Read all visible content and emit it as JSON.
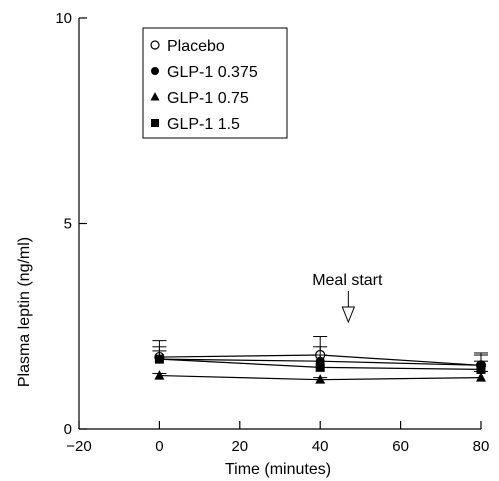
{
  "chart_data": {
    "type": "line",
    "xlabel": "Time (minutes)",
    "ylabel": "Plasma leptin (ng/ml)",
    "xlim": [
      -20,
      80
    ],
    "ylim": [
      0,
      10
    ],
    "x_ticks": [
      -20,
      0,
      20,
      40,
      60,
      80
    ],
    "y_ticks": [
      0,
      5,
      10
    ],
    "x_tick_labels": [
      "−20",
      "0",
      "20",
      "40",
      "60",
      "80"
    ],
    "y_tick_labels": [
      "0",
      "5",
      "10"
    ],
    "grid": false,
    "legend_position": "top-left",
    "annotation": {
      "text": "Meal start",
      "x": 47
    },
    "series": [
      {
        "name": "Placebo",
        "marker": "open-circle",
        "x": [
          0,
          40,
          80
        ],
        "y": [
          1.75,
          1.8,
          1.55
        ],
        "error": [
          0.4,
          0.45,
          0.3
        ]
      },
      {
        "name": "GLP-1 0.375",
        "marker": "filled-circle",
        "x": [
          0,
          40,
          80
        ],
        "y": [
          1.7,
          1.65,
          1.55
        ],
        "error": [
          0.3,
          0.35,
          0.25
        ]
      },
      {
        "name": "GLP-1 0.75",
        "marker": "filled-triangle",
        "x": [
          0,
          40,
          80
        ],
        "y": [
          1.3,
          1.2,
          1.25
        ],
        "error": [
          0.05,
          0.05,
          0.15
        ]
      },
      {
        "name": "GLP-1 1.5",
        "marker": "filled-square",
        "x": [
          0,
          40,
          80
        ],
        "y": [
          1.7,
          1.5,
          1.45
        ],
        "error": [
          0.2,
          0.3,
          0.2
        ]
      }
    ]
  }
}
